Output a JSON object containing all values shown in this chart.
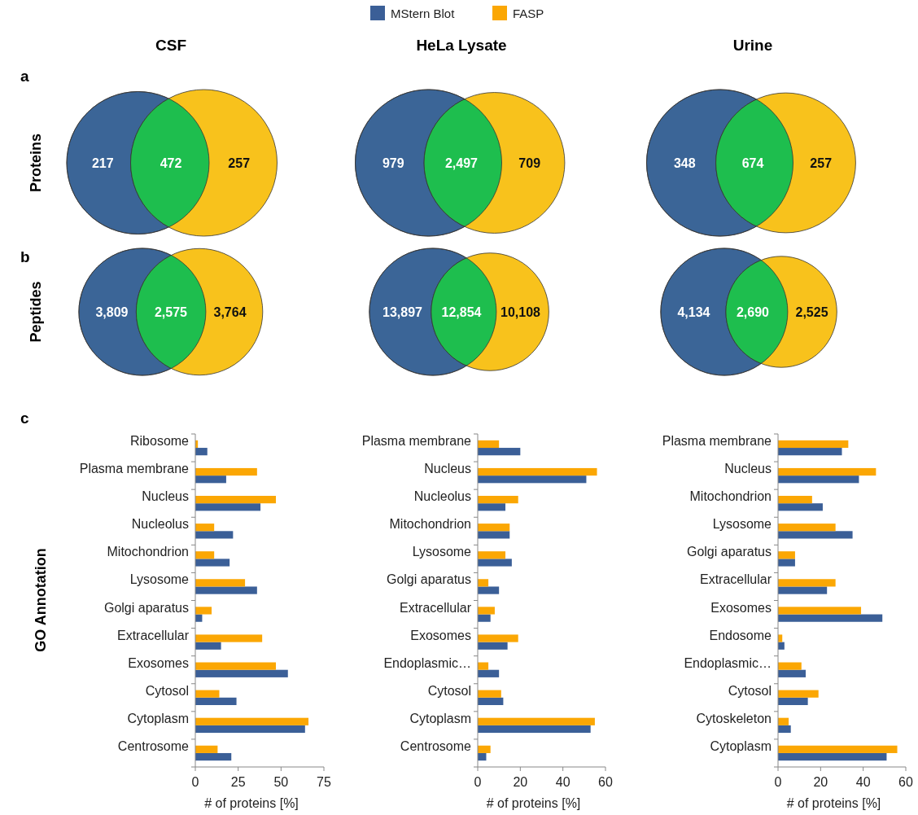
{
  "chart_data": [
    {
      "type": "other",
      "title": "CSF",
      "ylabel": "Proteins",
      "annotations": [
        "a"
      ],
      "categories": [
        null,
        null,
        null
      ],
      "values": [
        217,
        472,
        257
      ],
      "data_labels": true,
      "colors": [
        "#3b6597",
        "#1ebe4e",
        "#f8c21c"
      ]
    },
    {
      "type": "other",
      "title": "HeLa Lysate",
      "categories": [
        null,
        null,
        null
      ],
      "values": [
        979,
        2497,
        709
      ],
      "value_labels": [
        "979",
        "2,497",
        "709"
      ],
      "colors": [
        "#3b6597",
        "#1ebe4e",
        "#f8c21c"
      ]
    },
    {
      "type": "other",
      "title": "Urine",
      "categories": [
        null,
        null,
        null
      ],
      "values": [
        348,
        674,
        257
      ],
      "data_labels": true,
      "colors": [
        "#3b6597",
        "#1ebe4e",
        "#f8c21c"
      ]
    },
    {
      "type": "other",
      "ylabel": "Peptides",
      "annotations": [
        "b"
      ],
      "categories": [
        null,
        null,
        null
      ],
      "values": [
        3809,
        2575,
        3764
      ],
      "value_labels": [
        "3,809",
        "2,575",
        "3,764"
      ],
      "colors": [
        "#3b6597",
        "#1ebe4e",
        "#f8c21c"
      ]
    },
    {
      "type": "other",
      "categories": [
        null,
        null,
        null
      ],
      "values": [
        13897,
        12854,
        10108
      ],
      "value_labels": [
        "13,897",
        "12,854",
        "10,108"
      ],
      "colors": [
        "#3b6597",
        "#1ebe4e",
        "#f8c21c"
      ]
    },
    {
      "type": "other",
      "categories": [
        null,
        null,
        null
      ],
      "values": [
        4134,
        2690,
        2525
      ],
      "value_labels": [
        "4,134",
        "2,690",
        "2,525"
      ],
      "colors": [
        "#3b6597",
        "#1ebe4e",
        "#f8c21c"
      ]
    },
    {
      "type": "bar",
      "orientation": "horizontal",
      "ylabel": "GO Annotation",
      "xlabel": "# of proteins [%]",
      "annotations": [
        "c"
      ],
      "legend": "top",
      "categories": [
        "Ribosome",
        "Plasma membrane",
        "Nucleus",
        "Nucleolus",
        "Mitochondrion",
        "Lysosome",
        "Golgi aparatus",
        "Extracellular",
        "Exosomes",
        "Cytosol",
        "Cytoplasm",
        "Centrosome"
      ],
      "xlim": [
        0,
        75
      ],
      "xticks": [
        0,
        25,
        50,
        75
      ],
      "series": [
        {
          "name": "MStern Blot",
          "color": "#3b5f97",
          "values": [
            7,
            18,
            38,
            22,
            20,
            36,
            4,
            15,
            54,
            24,
            64,
            21
          ]
        },
        {
          "name": "FASP",
          "color": "#fba704",
          "values": [
            1.5,
            36,
            47,
            11,
            11,
            29,
            9.5,
            39,
            47,
            14,
            66,
            13
          ]
        }
      ]
    },
    {
      "type": "bar",
      "orientation": "horizontal",
      "xlabel": "# of proteins [%]",
      "categories": [
        "Plasma membrane",
        "Nucleus",
        "Nucleolus",
        "Mitochondrion",
        "Lysosome",
        "Golgi aparatus",
        "Extracellular",
        "Exosomes",
        "Endoplasmic…",
        "Cytosol",
        "Cytoplasm",
        "Centrosome"
      ],
      "xlim": [
        0,
        60
      ],
      "xticks": [
        0,
        20,
        40,
        60
      ],
      "series": [
        {
          "color": "#3b5f97",
          "values": [
            20,
            51,
            13,
            15,
            16,
            10,
            6,
            14,
            10,
            12,
            53,
            4
          ]
        },
        {
          "color": "#fba704",
          "values": [
            10,
            56,
            19,
            15,
            13,
            5,
            8,
            19,
            5,
            11,
            55,
            6
          ]
        }
      ]
    },
    {
      "type": "bar",
      "orientation": "horizontal",
      "xlabel": "# of proteins [%]",
      "categories": [
        "Plasma membrane",
        "Nucleus",
        "Mitochondrion",
        "Lysosome",
        "Golgi aparatus",
        "Extracellular",
        "Exosomes",
        "Endosome",
        "Endoplasmic…",
        "Cytosol",
        "Cytoskeleton",
        "Cytoplasm"
      ],
      "xlim": [
        0,
        60
      ],
      "xticks": [
        0,
        20,
        40,
        60
      ],
      "series": [
        {
          "color": "#3b5f97",
          "values": [
            30,
            38,
            21,
            35,
            8,
            23,
            49,
            3,
            13,
            14,
            6,
            51
          ]
        },
        {
          "color": "#fba704",
          "values": [
            33,
            46,
            16,
            27,
            8,
            27,
            39,
            2,
            11,
            19,
            5,
            56
          ]
        }
      ]
    }
  ]
}
